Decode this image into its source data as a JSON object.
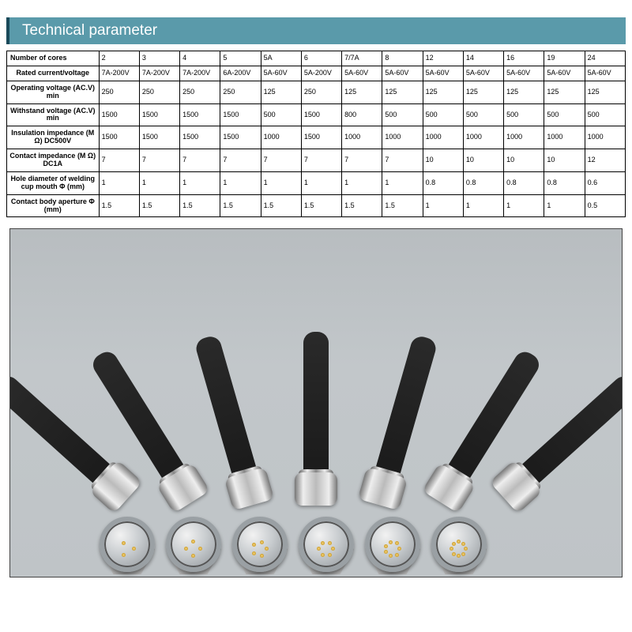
{
  "header": {
    "title": "Technical parameter"
  },
  "table": {
    "columns": [
      "2",
      "3",
      "4",
      "5",
      "5A",
      "6",
      "7/7A",
      "8",
      "12",
      "14",
      "16",
      "19",
      "24"
    ],
    "rows": [
      {
        "label": "Number of cores",
        "header": true
      },
      {
        "label": "Rated current/voltage",
        "cells": [
          "7A-200V",
          "7A-200V",
          "7A-200V",
          "6A-200V",
          "5A-60V",
          "5A-200V",
          "5A-60V",
          "5A-60V",
          "5A-60V",
          "5A-60V",
          "5A-60V",
          "5A-60V",
          "5A-60V"
        ]
      },
      {
        "label": "Operating voltage (AC.V) min",
        "cells": [
          "250",
          "250",
          "250",
          "250",
          "125",
          "250",
          "125",
          "125",
          "125",
          "125",
          "125",
          "125",
          "125"
        ]
      },
      {
        "label": "Withstand voltage (AC.V) min",
        "cells": [
          "1500",
          "1500",
          "1500",
          "1500",
          "500",
          "1500",
          "800",
          "500",
          "500",
          "500",
          "500",
          "500",
          "500"
        ]
      },
      {
        "label": "Insulation impedance (M Ω) DC500V",
        "cells": [
          "1500",
          "1500",
          "1500",
          "1500",
          "1000",
          "1500",
          "1000",
          "1000",
          "1000",
          "1000",
          "1000",
          "1000",
          "1000"
        ]
      },
      {
        "label": "Contact impedance (M Ω) DC1A",
        "cells": [
          "7",
          "7",
          "7",
          "7",
          "7",
          "7",
          "7",
          "7",
          "10",
          "10",
          "10",
          "10",
          "12"
        ]
      },
      {
        "label": "Hole diameter of welding cup mouth Φ (mm)",
        "cells": [
          "1",
          "1",
          "1",
          "1",
          "1",
          "1",
          "1",
          "1",
          "0.8",
          "0.8",
          "0.8",
          "0.8",
          "0.6"
        ]
      },
      {
        "label": "Contact body aperture Φ (mm)",
        "cells": [
          "1.5",
          "1.5",
          "1.5",
          "1.5",
          "1.5",
          "1.5",
          "1.5",
          "1.5",
          "1",
          "1",
          "1",
          "1",
          "0.5"
        ]
      }
    ],
    "border_color": "#000000",
    "header_bold": true,
    "font_size_pt": 7
  },
  "photo": {
    "background_color": "#bfc4c7",
    "connector_count_back_row": 7,
    "connector_count_front_row": 6,
    "barrel_color": "#1f1f1f",
    "metal_color": "#c7ccd0",
    "pin_color": "#d4a73a"
  },
  "colors": {
    "title_bg": "#5a9aaa",
    "title_accent": "#1a4a5a",
    "title_text": "#ffffff",
    "page_bg": "#ffffff"
  }
}
